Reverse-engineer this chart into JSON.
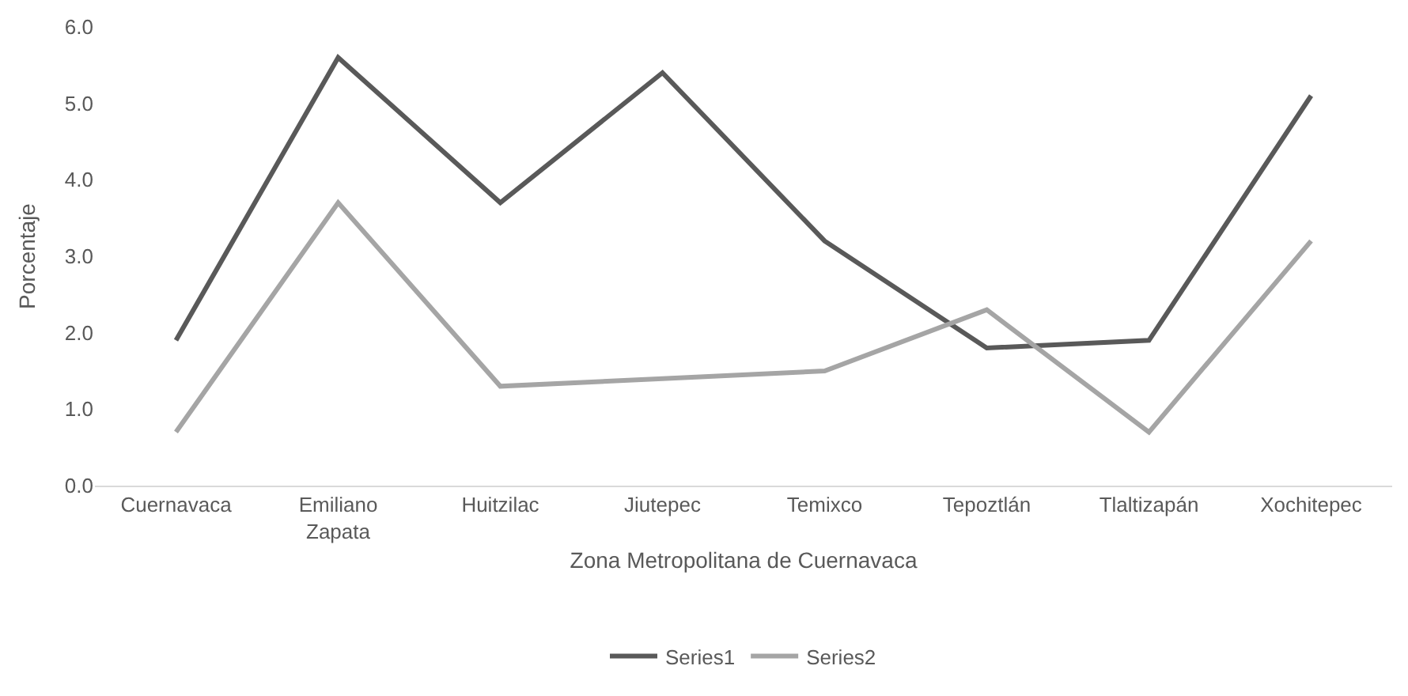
{
  "chart_data": {
    "type": "line",
    "xlabel": "Zona Metropolitana de Cuernavaca",
    "ylabel": "Porcentaje",
    "categories": [
      "Cuernavaca",
      "Emiliano Zapata",
      "Huitzilac",
      "Jiutepec",
      "Temixco",
      "Tepoztlán",
      "Tlaltizapán",
      "Xochitepec"
    ],
    "series": [
      {
        "name": "Series1",
        "color": "#595959",
        "values": [
          1.9,
          5.6,
          3.7,
          5.4,
          3.2,
          1.8,
          1.9,
          5.1
        ]
      },
      {
        "name": "Series2",
        "color": "#a5a5a5",
        "values": [
          0.7,
          3.7,
          1.3,
          1.4,
          1.5,
          2.3,
          0.7,
          3.2
        ]
      }
    ],
    "ylim": [
      0,
      6
    ],
    "yticks": [
      {
        "value": 0,
        "label": "0.0"
      },
      {
        "value": 1,
        "label": "1.0"
      },
      {
        "value": 2,
        "label": "2.0"
      },
      {
        "value": 3,
        "label": "3.0"
      },
      {
        "value": 4,
        "label": "4.0"
      },
      {
        "value": 5,
        "label": "5.0"
      },
      {
        "value": 6,
        "label": "6.0"
      }
    ],
    "legend": "bottom",
    "marker": "none",
    "line_style": "solid"
  }
}
